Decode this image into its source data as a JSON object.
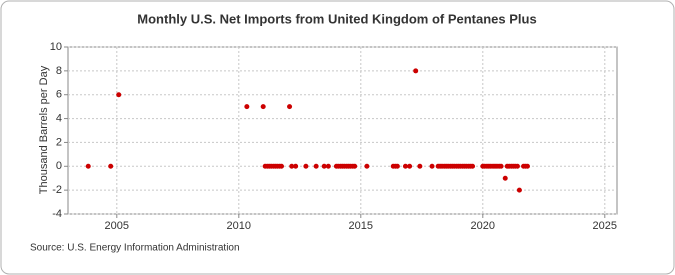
{
  "chart_data": {
    "type": "scatter",
    "title": "Monthly U.S. Net Imports from United Kingdom of Pentanes Plus",
    "y_label": "Thousand Barrels per Day",
    "source": "Source: U.S. Energy Information Administration",
    "color": "#cc0000",
    "x": [
      2003.83,
      2004.75,
      2005.08,
      2010.33,
      2011.0,
      2011.08,
      2011.17,
      2011.25,
      2011.33,
      2011.42,
      2011.5,
      2011.58,
      2011.67,
      2011.75,
      2012.08,
      2012.17,
      2012.33,
      2012.75,
      2013.17,
      2013.5,
      2013.67,
      2014.0,
      2014.08,
      2014.17,
      2014.25,
      2014.33,
      2014.42,
      2014.5,
      2014.58,
      2014.67,
      2014.75,
      2015.25,
      2016.33,
      2016.42,
      2016.5,
      2016.83,
      2017.0,
      2017.25,
      2017.42,
      2017.92,
      2018.17,
      2018.25,
      2018.33,
      2018.42,
      2018.5,
      2018.58,
      2018.67,
      2018.75,
      2018.83,
      2018.92,
      2019.0,
      2019.08,
      2019.17,
      2019.25,
      2019.33,
      2019.42,
      2019.5,
      2019.58,
      2020.0,
      2020.08,
      2020.17,
      2020.25,
      2020.33,
      2020.42,
      2020.5,
      2020.58,
      2020.67,
      2020.75,
      2020.92,
      2021.0,
      2021.08,
      2021.17,
      2021.25,
      2021.33,
      2021.42,
      2021.5,
      2021.67,
      2021.75,
      2021.83
    ],
    "values": [
      0,
      0,
      6,
      5,
      5,
      0,
      0,
      0,
      0,
      0,
      0,
      0,
      0,
      0,
      5,
      0,
      0,
      0,
      0,
      0,
      0,
      0,
      0,
      0,
      0,
      0,
      0,
      0,
      0,
      0,
      0,
      0,
      0,
      0,
      0,
      0,
      0,
      8,
      0,
      0,
      0,
      0,
      0,
      0,
      0,
      0,
      0,
      0,
      0,
      0,
      0,
      0,
      0,
      0,
      0,
      0,
      0,
      0,
      0,
      0,
      0,
      0,
      0,
      0,
      0,
      0,
      0,
      0,
      -1,
      0,
      0,
      0,
      0,
      0,
      0,
      -2,
      0,
      0,
      0
    ],
    "xlim": [
      2003,
      2025.5
    ],
    "xticks": [
      2005,
      2010,
      2015,
      2020,
      2025
    ],
    "ylim": [
      -4,
      10
    ],
    "yticks": [
      -4,
      -2,
      0,
      2,
      4,
      6,
      8,
      10
    ],
    "grid": true
  }
}
